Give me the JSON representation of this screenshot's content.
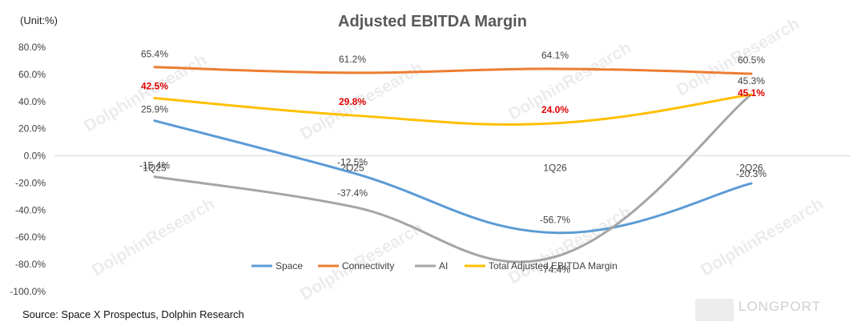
{
  "unit_label": "(Unit:%)",
  "source": "Source: Space X Prospectus, Dolphin Research",
  "watermark": "DolphinResearch",
  "brand": "LONGPORT",
  "colors": {
    "space": "#5b9bd5",
    "connectivity": "#ed7d31",
    "ai": "#a5a5a5",
    "total": "#ffc000",
    "total_label": "#e00000"
  },
  "chart_data": {
    "type": "line",
    "title": "Adjusted EBITDA Margin",
    "categories": [
      "1Q25",
      "2Q25",
      "1Q26",
      "2Q26"
    ],
    "ylim": [
      -100,
      80
    ],
    "yticks": [
      80,
      60,
      40,
      20,
      0,
      -20,
      -40,
      -60,
      -80,
      -100
    ],
    "ytick_labels": [
      "80.0%",
      "60.0%",
      "40.0%",
      "20.0%",
      "0.0%",
      "-20.0%",
      "-40.0%",
      "-60.0%",
      "-80.0%",
      "-100.0%"
    ],
    "legend_position": "bottom",
    "series": [
      {
        "name": "Space",
        "key": "space",
        "values": [
          25.9,
          -12.5,
          -56.7,
          -20.3
        ],
        "labels": [
          "25.9%",
          "-12.5%",
          "-56.7%",
          "-20.3%"
        ]
      },
      {
        "name": "Connectivity",
        "key": "connectivity",
        "values": [
          65.4,
          61.2,
          64.1,
          60.5
        ],
        "labels": [
          "65.4%",
          "61.2%",
          "64.1%",
          "60.5%"
        ]
      },
      {
        "name": "AI",
        "key": "ai",
        "values": [
          -15.4,
          -37.4,
          -74.4,
          45.3
        ],
        "labels": [
          "-15.4%",
          "-37.4%",
          "-74.4%",
          "45.3%"
        ]
      },
      {
        "name": "Total Adjusted EBITDA Margin",
        "key": "total",
        "values": [
          42.5,
          29.8,
          24.0,
          45.1
        ],
        "labels": [
          "42.5%",
          "29.8%",
          "24.0%",
          "45.1%"
        ]
      }
    ]
  }
}
